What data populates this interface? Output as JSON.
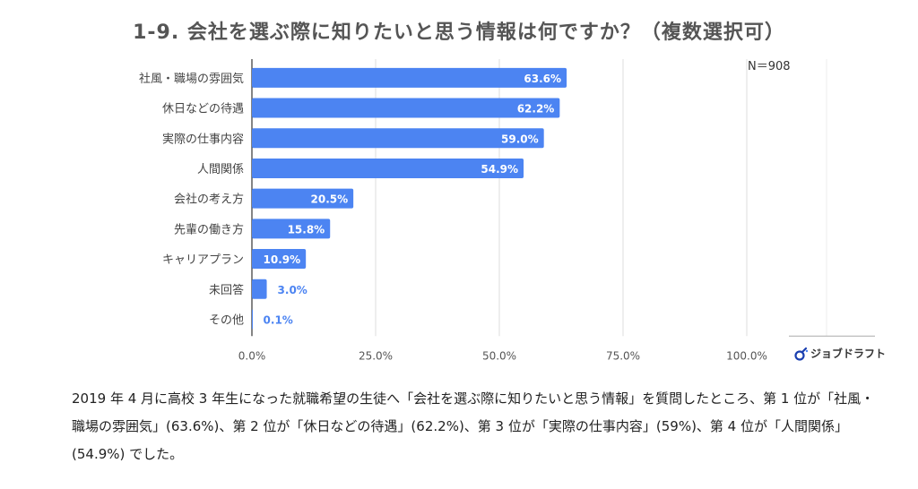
{
  "title": "1-9.  会社を選ぶ際に知りたいと思う情報は何ですか？（複数選択可）",
  "n_label": "N＝908",
  "brand": {
    "name": "ジョブドラフト",
    "icon": "jobdraft-logo-icon"
  },
  "caption": "2019 年 4 月に高校 3 年生になった就職希望の生徒へ「会社を選ぶ際に知りたいと思う情報」を質問したところ、第 1 位が「社風・職場の雰囲気」(63.6%)、第 2 位が「休日などの待遇」(62.2%)、第 3 位が「実際の仕事内容」(59%)、第 4 位が「人間関係」(54.9%) でした。",
  "colors": {
    "bar": "#4c84f2",
    "label_outside": "#4c84f2",
    "label_inside": "#ffffff",
    "grid": "#dddddd"
  },
  "chart_data": {
    "type": "bar",
    "orientation": "horizontal",
    "categories": [
      "社風・職場の雰囲気",
      "休日などの待遇",
      "実際の仕事内容",
      "人間関係",
      "会社の考え方",
      "先輩の働き方",
      "キャリアプラン",
      "未回答",
      "その他"
    ],
    "values": [
      63.6,
      62.2,
      59.0,
      54.9,
      20.5,
      15.8,
      10.9,
      3.0,
      0.1
    ],
    "value_labels": [
      "63.6%",
      "62.2%",
      "59.0%",
      "54.9%",
      "20.5%",
      "15.8%",
      "10.9%",
      "3.0%",
      "0.1%"
    ],
    "xlim": [
      0,
      100
    ],
    "x_ticks": [
      0,
      25,
      50,
      75,
      100
    ],
    "x_tick_labels": [
      "0.0%",
      "25.0%",
      "50.0%",
      "75.0%",
      "100.0%"
    ],
    "grid": true
  }
}
